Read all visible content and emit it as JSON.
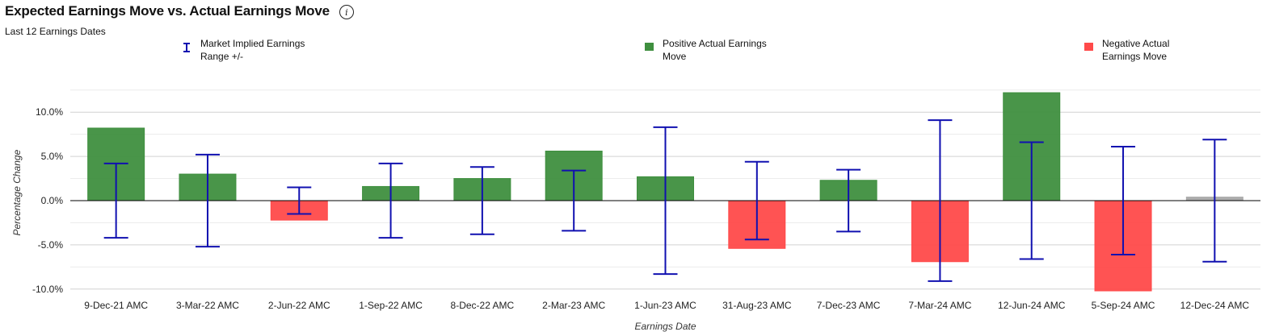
{
  "chart_data": {
    "type": "bar",
    "title": "Expected Earnings Move vs. Actual Earnings Move",
    "subtitle": "Last 12 Earnings Dates",
    "xlabel": "Earnings Date",
    "ylabel": "Percentage Change",
    "ylim": [
      -10.0,
      12.5
    ],
    "yticks": [
      10.0,
      5.0,
      0.0,
      -5.0,
      -10.0
    ],
    "ytick_labels": [
      "10.0%",
      "5.0%",
      "0.0%",
      "-5.0%",
      "-10.0%"
    ],
    "grid": true,
    "categories": [
      "9-Dec-21 AMC",
      "3-Mar-22 AMC",
      "2-Jun-22 AMC",
      "1-Sep-22 AMC",
      "8-Dec-22 AMC",
      "2-Mar-23 AMC",
      "1-Jun-23 AMC",
      "31-Aug-23 AMC",
      "7-Dec-23 AMC",
      "7-Mar-24 AMC",
      "12-Jun-24 AMC",
      "5-Sep-24 AMC",
      "12-Dec-24 AMC"
    ],
    "series": [
      {
        "name": "Actual Earnings Move",
        "values": [
          8.2,
          3.0,
          -2.2,
          1.6,
          2.5,
          5.6,
          2.7,
          -5.4,
          2.3,
          -6.9,
          12.2,
          -10.2,
          0.4
        ]
      },
      {
        "name": "Market Implied Earnings Range +/-",
        "values": [
          4.2,
          5.2,
          1.5,
          4.2,
          3.8,
          3.4,
          8.3,
          4.4,
          3.5,
          9.1,
          6.6,
          6.1,
          6.9
        ]
      }
    ],
    "legend": [
      {
        "label": "Market Implied Earnings Range +/-",
        "symbol": "error-bar-icon",
        "color": "#1010b0"
      },
      {
        "label": "Positive Actual Earnings Move",
        "symbol": "swatch",
        "color": "#3f8f3f"
      },
      {
        "label": "Negative Actual Earnings Move",
        "symbol": "swatch",
        "color": "#ff4a4a"
      }
    ],
    "colors": {
      "positive": "#3f8f3f",
      "negative": "#ff4a4a",
      "neutral": "#a9a9a9",
      "range": "#1010b0",
      "grid": "#d9d9d9",
      "zero_line": "#000000"
    },
    "info_icon": "info-icon"
  }
}
